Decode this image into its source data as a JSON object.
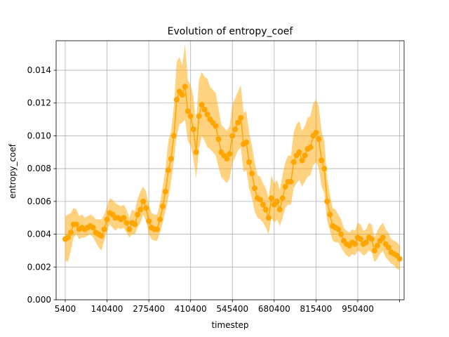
{
  "chart_data": {
    "type": "line",
    "title": "Evolution of entropy_coef",
    "xlabel": "timestep",
    "ylabel": "entropy_coef",
    "xlim": [
      -24000,
      1100000
    ],
    "ylim": [
      0.0,
      0.0158
    ],
    "xticks": [
      5400,
      140400,
      275400,
      410400,
      545400,
      680400,
      815400,
      950400,
      1085400
    ],
    "xtick_labels": [
      "5400",
      "140400",
      "275400",
      "410400",
      "545400",
      "680400",
      "815400",
      "950400",
      ""
    ],
    "yticks": [
      0.0,
      0.002,
      0.004,
      0.006,
      0.008,
      0.01,
      0.012,
      0.014
    ],
    "ytick_labels": [
      "0.000",
      "0.002",
      "0.004",
      "0.006",
      "0.008",
      "0.010",
      "0.012",
      "0.014"
    ],
    "grid": true,
    "colors": {
      "line": "#FFA500",
      "band": "#FFA500"
    },
    "series": [
      {
        "x": [
          5400,
          14400,
          23400,
          32400,
          41400,
          50400,
          59400,
          68400,
          77400,
          86400,
          95400,
          104400,
          113400,
          122400,
          131400,
          140400,
          149400,
          158400,
          167400,
          176400,
          185400,
          194400,
          203400,
          212400,
          221400,
          230400,
          239400,
          248400,
          257400,
          266400,
          275400,
          284400,
          293400,
          302400,
          311400,
          320400,
          329400,
          338400,
          347400,
          356400,
          365400,
          374400,
          383400,
          392400,
          401400,
          410400,
          419400,
          428400,
          437400,
          446400,
          455400,
          464400,
          473400,
          482400,
          491400,
          500400,
          509400,
          518400,
          527400,
          536400,
          545400,
          554400,
          563400,
          572400,
          581400,
          590400,
          599400,
          608400,
          617400,
          626400,
          635400,
          644400,
          653400,
          662400,
          671400,
          680400,
          689400,
          698400,
          707400,
          716400,
          725400,
          734400,
          743400,
          752400,
          761400,
          770400,
          779400,
          788400,
          797400,
          806400,
          815400,
          824400,
          833400,
          842400,
          851400,
          860400,
          869400,
          878400,
          887400,
          896400,
          905400,
          914400,
          923400,
          932400,
          941400,
          950400,
          959400,
          968400,
          977400,
          986400,
          995400,
          1004400,
          1013400,
          1022400,
          1031400,
          1040400,
          1049400,
          1058400,
          1067400,
          1076400,
          1085400
        ],
        "y": [
          0.0037,
          0.0038,
          0.0041,
          0.0046,
          0.0046,
          0.0043,
          0.0044,
          0.0043,
          0.0044,
          0.0045,
          0.0044,
          0.0041,
          0.004,
          0.0039,
          0.0043,
          0.0049,
          0.0053,
          0.0052,
          0.005,
          0.005,
          0.0049,
          0.005,
          0.0047,
          0.0043,
          0.0047,
          0.0046,
          0.0052,
          0.0055,
          0.006,
          0.0056,
          0.0048,
          0.0044,
          0.0043,
          0.0043,
          0.0049,
          0.0057,
          0.0066,
          0.0079,
          0.0086,
          0.01,
          0.0122,
          0.0127,
          0.0125,
          0.013,
          0.0115,
          0.0112,
          0.0104,
          0.009,
          0.0112,
          0.0119,
          0.0116,
          0.0113,
          0.011,
          0.0108,
          0.0106,
          0.0098,
          0.009,
          0.0088,
          0.0086,
          0.0089,
          0.01,
          0.0104,
          0.0108,
          0.0111,
          0.0095,
          0.0096,
          0.0084,
          0.0077,
          0.0068,
          0.0062,
          0.0061,
          0.0058,
          0.0055,
          0.005,
          0.0062,
          0.0058,
          0.006,
          0.0055,
          0.0062,
          0.0069,
          0.0072,
          0.0072,
          0.0084,
          0.0088,
          0.009,
          0.0085,
          0.0088,
          0.0092,
          0.0093,
          0.01,
          0.0102,
          0.0098,
          0.0085,
          0.008,
          0.006,
          0.0052,
          0.0045,
          0.0044,
          0.0043,
          0.004,
          0.0036,
          0.0034,
          0.0033,
          0.0035,
          0.0034,
          0.0038,
          0.0037,
          0.0034,
          0.0035,
          0.0038,
          0.0037,
          0.003,
          0.0033,
          0.0036,
          0.0038,
          0.0034,
          0.0032,
          0.0029,
          0.0028,
          0.0027,
          0.0025
        ],
        "y_lower": [
          0.0024,
          0.0023,
          0.003,
          0.0038,
          0.004,
          0.0037,
          0.0038,
          0.0038,
          0.0039,
          0.004,
          0.0038,
          0.0035,
          0.0032,
          0.003,
          0.0036,
          0.0042,
          0.0046,
          0.0044,
          0.0042,
          0.0044,
          0.0043,
          0.0044,
          0.0041,
          0.0038,
          0.004,
          0.004,
          0.0044,
          0.0047,
          0.0052,
          0.0048,
          0.004,
          0.0037,
          0.0036,
          0.0036,
          0.0041,
          0.0047,
          0.0054,
          0.0062,
          0.0072,
          0.0085,
          0.01,
          0.0107,
          0.0108,
          0.011,
          0.0097,
          0.0094,
          0.0086,
          0.0074,
          0.0092,
          0.01,
          0.0097,
          0.0093,
          0.0092,
          0.009,
          0.0088,
          0.0081,
          0.0075,
          0.0073,
          0.0071,
          0.0074,
          0.0083,
          0.0087,
          0.0091,
          0.0093,
          0.0078,
          0.0079,
          0.0068,
          0.0062,
          0.0054,
          0.005,
          0.0049,
          0.0047,
          0.0044,
          0.004,
          0.005,
          0.0047,
          0.0049,
          0.0045,
          0.005,
          0.0056,
          0.0058,
          0.0058,
          0.0068,
          0.0071,
          0.0073,
          0.0069,
          0.0072,
          0.0075,
          0.0076,
          0.0082,
          0.0084,
          0.008,
          0.0069,
          0.0065,
          0.0048,
          0.0042,
          0.0036,
          0.0035,
          0.0035,
          0.0032,
          0.0029,
          0.0027,
          0.0026,
          0.0028,
          0.0027,
          0.003,
          0.0029,
          0.0027,
          0.0028,
          0.003,
          0.0029,
          0.0023,
          0.0025,
          0.0028,
          0.003,
          0.0026,
          0.0024,
          0.0022,
          0.0021,
          0.0019,
          0.0018
        ],
        "y_upper": [
          0.0051,
          0.0052,
          0.0053,
          0.0056,
          0.0055,
          0.0051,
          0.0052,
          0.005,
          0.0051,
          0.0052,
          0.0051,
          0.0049,
          0.0049,
          0.0049,
          0.0052,
          0.0057,
          0.0062,
          0.0061,
          0.0059,
          0.0058,
          0.0057,
          0.0058,
          0.0055,
          0.005,
          0.0055,
          0.0054,
          0.0062,
          0.0066,
          0.0069,
          0.0066,
          0.0058,
          0.0053,
          0.0052,
          0.0052,
          0.0059,
          0.0069,
          0.008,
          0.0097,
          0.0103,
          0.0118,
          0.0145,
          0.0148,
          0.0143,
          0.0156,
          0.0134,
          0.0131,
          0.0124,
          0.0108,
          0.0134,
          0.0139,
          0.0136,
          0.0135,
          0.013,
          0.0128,
          0.0126,
          0.0117,
          0.0107,
          0.0105,
          0.0103,
          0.0106,
          0.0119,
          0.0123,
          0.0127,
          0.0131,
          0.0114,
          0.0115,
          0.0102,
          0.0094,
          0.0084,
          0.0076,
          0.0075,
          0.0071,
          0.0068,
          0.0062,
          0.0076,
          0.0071,
          0.0073,
          0.0067,
          0.0076,
          0.0084,
          0.0088,
          0.0088,
          0.0102,
          0.0107,
          0.0109,
          0.0103,
          0.0106,
          0.0111,
          0.0112,
          0.012,
          0.0122,
          0.0118,
          0.0103,
          0.0097,
          0.0074,
          0.0064,
          0.0056,
          0.0055,
          0.0052,
          0.0049,
          0.0044,
          0.0042,
          0.0041,
          0.0043,
          0.0042,
          0.0047,
          0.0046,
          0.0042,
          0.0043,
          0.0047,
          0.0046,
          0.0038,
          0.0042,
          0.0045,
          0.0047,
          0.0043,
          0.0041,
          0.0037,
          0.0036,
          0.0035,
          0.0033
        ]
      }
    ]
  }
}
